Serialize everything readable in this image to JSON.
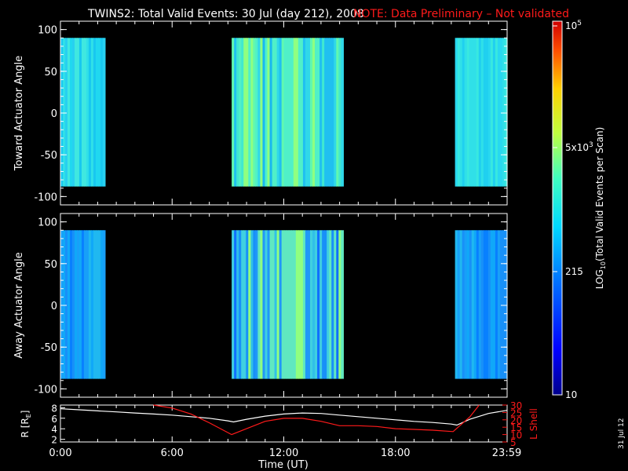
{
  "header": {
    "title": "TWINS2: Total Valid Events: 30 Jul (day 212), 2008",
    "note": "NOTE: Data Preliminary – Not validated"
  },
  "stamp": "31 Jul 12",
  "colorbar": {
    "label": "LOG10(Total Valid Events per Scan)",
    "label_main": "LOG",
    "label_sub": "10",
    "label_rest": "(Total Valid Events per Scan)",
    "ticks": [
      {
        "base": "10",
        "exp": "5"
      },
      {
        "base": "5x10",
        "exp": "3"
      },
      {
        "base": "215",
        "exp": ""
      },
      {
        "base": "10",
        "exp": ""
      }
    ]
  },
  "chart_data": [
    {
      "type": "heatmap",
      "name": "toward",
      "ylabel": "Toward Actuator Angle",
      "yticks": [
        "100",
        "50",
        "0",
        "-50",
        "-100"
      ],
      "ylim": [
        -110,
        110
      ],
      "xlim": [
        0,
        24
      ],
      "data_blocks": [
        {
          "x_start": 0.0,
          "x_end": 2.4,
          "y_start": -88,
          "y_end": 90,
          "level": "cyan-light"
        },
        {
          "x_start": 9.2,
          "x_end": 15.2,
          "y_start": -88,
          "y_end": 90,
          "level": "cyan-green"
        },
        {
          "x_start": 21.2,
          "x_end": 24.0,
          "y_start": -88,
          "y_end": 90,
          "level": "cyan"
        }
      ],
      "colorscale": "log",
      "colorrange": [
        10,
        100000
      ]
    },
    {
      "type": "heatmap",
      "name": "away",
      "ylabel": "Away Actuator Angle",
      "yticks": [
        "100",
        "50",
        "0",
        "-50",
        "-100"
      ],
      "ylim": [
        -110,
        110
      ],
      "xlim": [
        0,
        24
      ],
      "data_blocks": [
        {
          "x_start": 0.0,
          "x_end": 2.4,
          "y_start": -88,
          "y_end": 90,
          "level": "blue-cyan"
        },
        {
          "x_start": 9.2,
          "x_end": 15.2,
          "y_start": -88,
          "y_end": 90,
          "level": "blue-green"
        },
        {
          "x_start": 21.2,
          "x_end": 24.0,
          "y_start": -88,
          "y_end": 90,
          "level": "blue-cyan"
        }
      ],
      "colorscale": "log",
      "colorrange": [
        10,
        100000
      ]
    },
    {
      "type": "line",
      "name": "orbit",
      "xlabel": "Time (UT)",
      "xticks": [
        "0:00",
        "6:00",
        "12:00",
        "18:00",
        "23:59"
      ],
      "ylabel_left": "R [RE]",
      "ylabel_left_main": "R [R",
      "ylabel_left_sub": "E",
      "ylabel_left_end": "]",
      "yticks_left": [
        "8",
        "6",
        "4",
        "2"
      ],
      "ylim_left": [
        1.5,
        8.5
      ],
      "ylabel_right": "L Shell",
      "yticks_right": [
        "30",
        "25",
        "20",
        "15",
        "10",
        "5"
      ],
      "ylim_right": [
        5,
        30
      ],
      "series": [
        {
          "name": "R",
          "color": "#ffffff",
          "x": [
            0,
            1,
            2,
            3,
            4,
            5,
            6,
            7,
            8,
            9,
            9.3,
            10,
            11,
            12,
            13,
            14,
            15,
            16,
            17,
            18,
            19,
            20,
            21,
            21.3,
            22,
            23,
            24
          ],
          "y": [
            7.8,
            7.6,
            7.4,
            7.2,
            7.0,
            6.8,
            6.6,
            6.3,
            6.0,
            5.5,
            5.3,
            5.8,
            6.4,
            6.8,
            7.0,
            6.9,
            6.6,
            6.3,
            6.0,
            5.7,
            5.4,
            5.2,
            4.9,
            4.7,
            5.8,
            6.9,
            7.5
          ]
        },
        {
          "name": "L Shell",
          "color": "#ff1a1a",
          "x": [
            5.0,
            6,
            7,
            8,
            9.2,
            10,
            11,
            12,
            13,
            14,
            15,
            16,
            17,
            18,
            19,
            20,
            21.1,
            22,
            22.5
          ],
          "y": [
            30,
            28,
            24,
            18,
            10,
            14,
            19,
            21,
            21,
            19,
            16,
            16,
            15.5,
            14,
            13.5,
            13,
            12,
            22,
            30
          ]
        }
      ]
    }
  ]
}
